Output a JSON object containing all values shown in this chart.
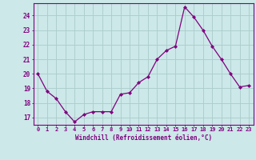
{
  "x": [
    0,
    1,
    2,
    3,
    4,
    5,
    6,
    7,
    8,
    9,
    10,
    11,
    12,
    13,
    14,
    15,
    16,
    17,
    18,
    19,
    20,
    21,
    22,
    23
  ],
  "y": [
    20.0,
    18.8,
    18.3,
    17.4,
    16.7,
    17.2,
    17.4,
    17.4,
    17.4,
    18.6,
    18.7,
    19.4,
    19.8,
    21.0,
    21.6,
    21.9,
    24.6,
    23.9,
    23.0,
    21.9,
    21.0,
    20.0,
    19.1,
    19.2
  ],
  "line_color": "#800080",
  "marker": "D",
  "marker_size": 2.0,
  "bg_color": "#cce8e8",
  "grid_color": "#aacccc",
  "xlabel": "Windchill (Refroidissement éolien,°C)",
  "xlabel_color": "#800080",
  "ylabel_ticks": [
    17,
    18,
    19,
    20,
    21,
    22,
    23,
    24
  ],
  "xlim": [
    -0.5,
    23.5
  ],
  "ylim": [
    16.5,
    24.85
  ],
  "tick_color": "#800080",
  "spine_color": "#800080",
  "xtick_labels": [
    "0",
    "1",
    "2",
    "3",
    "4",
    "5",
    "6",
    "7",
    "8",
    "9",
    "10",
    "11",
    "12",
    "13",
    "14",
    "15",
    "16",
    "17",
    "18",
    "19",
    "20",
    "21",
    "22",
    "23"
  ]
}
